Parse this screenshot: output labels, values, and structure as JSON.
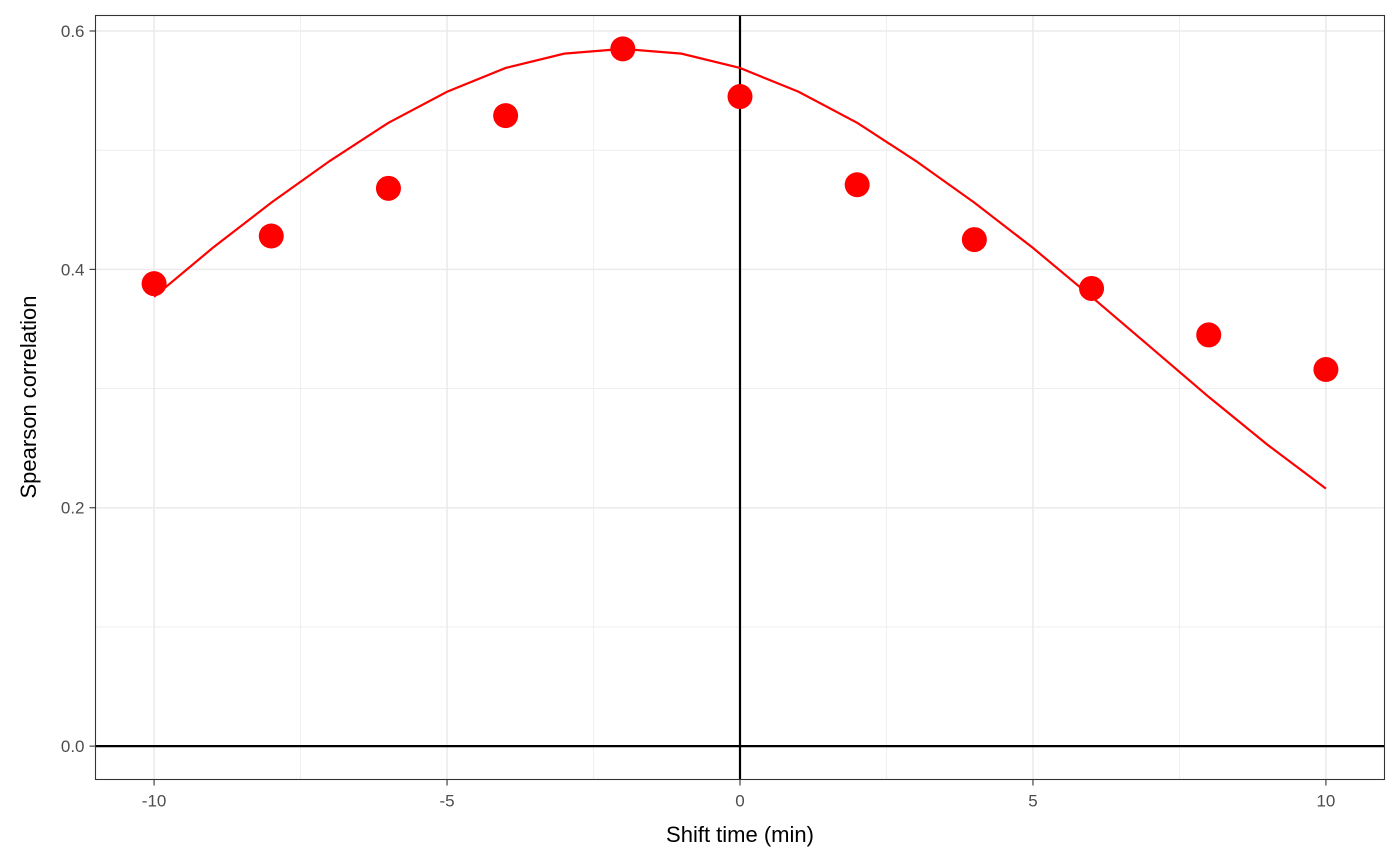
{
  "chart_data": {
    "type": "scatter",
    "title": "",
    "xlabel": "Shift time (min)",
    "ylabel": "Spearson correlation",
    "xlim": [
      -11,
      11
    ],
    "ylim": [
      -0.028,
      0.613
    ],
    "x_ticks": [
      -10,
      -5,
      0,
      5,
      10
    ],
    "x_tick_labels": [
      "-10",
      "-5",
      "0",
      "5",
      "10"
    ],
    "y_ticks": [
      0.0,
      0.2,
      0.4,
      0.6
    ],
    "y_tick_labels": [
      "0.0",
      "0.2",
      "0.4",
      "0.6"
    ],
    "grid": true,
    "reference_lines": {
      "h": 0,
      "v": 0
    },
    "colors": {
      "points": "#ff0000",
      "line": "#ff0000",
      "grid": "#ebebeb",
      "reference": "#000000"
    },
    "series": [
      {
        "kind": "points",
        "x": [
          -10,
          -8,
          -6,
          -4,
          -2,
          0,
          2,
          4,
          6,
          8,
          10
        ],
        "y": [
          0.388,
          0.428,
          0.468,
          0.529,
          0.585,
          0.545,
          0.471,
          0.425,
          0.384,
          0.345,
          0.316
        ]
      },
      {
        "kind": "line",
        "x": [
          -10,
          -9,
          -8,
          -7,
          -6,
          -5,
          -4,
          -3,
          -2,
          -1,
          0,
          1,
          2,
          3,
          4,
          5,
          6,
          7,
          8,
          9,
          10
        ],
        "y": [
          0.377,
          0.418,
          0.456,
          0.491,
          0.523,
          0.549,
          0.569,
          0.581,
          0.585,
          0.581,
          0.569,
          0.549,
          0.523,
          0.491,
          0.456,
          0.418,
          0.377,
          0.335,
          0.293,
          0.253,
          0.216
        ]
      }
    ]
  }
}
